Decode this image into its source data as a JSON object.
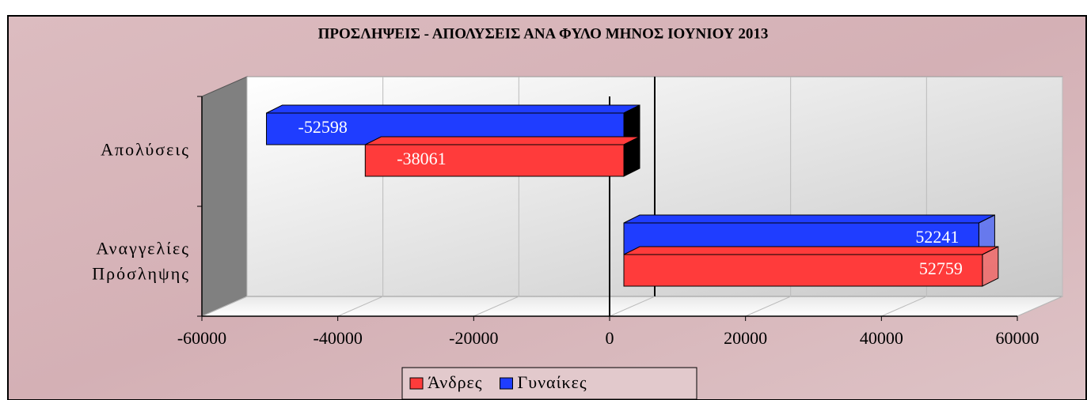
{
  "chart_data": {
    "type": "bar3d_horizontal",
    "title": "ΠΡΟΣΛΗΨΕΙΣ - ΑΠΟΛΥΣΕΙΣ ΑΝΑ ΦΥΛΟ ΜΗΝΟΣ ΙΟΥΝΙΟΥ 2013",
    "categories": [
      "Απολύσεις",
      "Αναγγελίες Πρόσληψης"
    ],
    "series": [
      {
        "name": "Άνδρες",
        "color": "#ff3b3b",
        "values": [
          -38061,
          52759
        ]
      },
      {
        "name": "Γυναίκες",
        "color": "#1f3dff",
        "values": [
          -52598,
          52241
        ]
      }
    ],
    "xlim": [
      -60000,
      60000
    ],
    "xticks": [
      -60000,
      -40000,
      -20000,
      0,
      20000,
      40000,
      60000
    ],
    "grid": true,
    "legend": "bottom"
  }
}
